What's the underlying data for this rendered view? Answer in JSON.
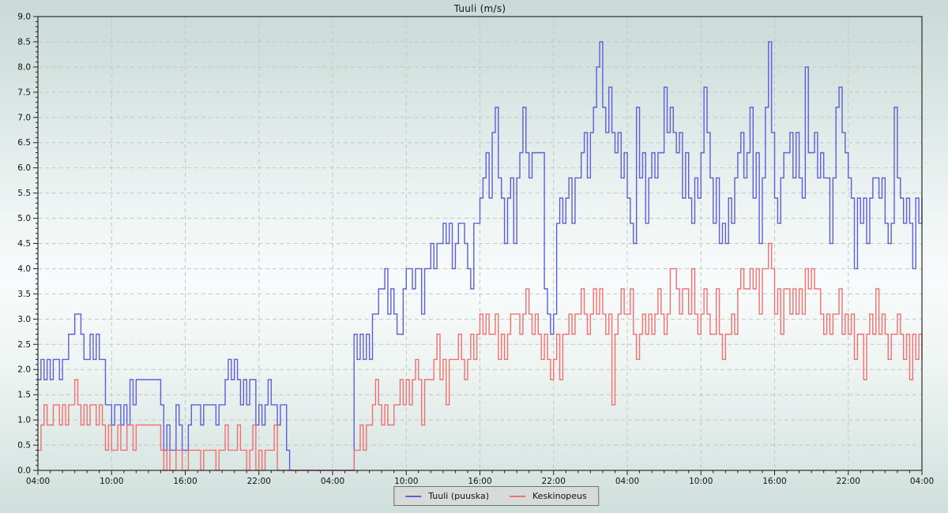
{
  "title": "Tuuli (m/s)",
  "legend": {
    "items": [
      {
        "label": "Tuuli (puuska)",
        "color": "#5e5ed8"
      },
      {
        "label": "Keskinopeus",
        "color": "#f07070"
      }
    ]
  },
  "colors": {
    "gust_line": "#5e5ed8",
    "mean_line": "#f07070",
    "grid": "#c2c7c6",
    "frame": "#2b2b2b",
    "legend_bg": "#d6dbda"
  },
  "chart_data": {
    "type": "line",
    "step": true,
    "title": "Tuuli (m/s)",
    "hours_span": 72,
    "sample_interval_minutes": 15,
    "x_tick_interval_hours": 6,
    "x_tick_labels": [
      "04:00",
      "10:00",
      "16:00",
      "22:00",
      "04:00",
      "10:00",
      "16:00",
      "22:00",
      "04:00",
      "10:00",
      "16:00",
      "22:00",
      "04:00"
    ],
    "y_tick_labels": [
      "0.0",
      "0.5",
      "1.0",
      "1.5",
      "2.0",
      "2.5",
      "3.0",
      "3.5",
      "4.0",
      "4.5",
      "5.0",
      "5.5",
      "6.0",
      "6.5",
      "7.0",
      "7.5",
      "8.0",
      "8.5",
      "9.0"
    ],
    "ylim": [
      0,
      9
    ],
    "y_tick_step": 0.5,
    "grid": true,
    "legend_position": "bottom-center",
    "series": [
      {
        "name": "Tuuli (puuska)",
        "color": "#5e5ed8",
        "values": [
          1.8,
          2.2,
          1.8,
          2.2,
          1.8,
          2.2,
          2.2,
          1.8,
          2.2,
          2.2,
          2.7,
          2.7,
          3.1,
          3.1,
          2.7,
          2.2,
          2.2,
          2.7,
          2.2,
          2.7,
          2.2,
          2.2,
          1.3,
          1.3,
          0.9,
          1.3,
          1.3,
          0.9,
          1.3,
          0.9,
          1.8,
          1.3,
          1.8,
          1.8,
          1.8,
          1.8,
          1.8,
          1.8,
          1.8,
          1.8,
          1.3,
          0.4,
          0.9,
          0.4,
          0.4,
          1.3,
          0.9,
          0.4,
          0.4,
          0.9,
          1.3,
          1.3,
          1.3,
          0.9,
          1.3,
          1.3,
          1.3,
          1.3,
          0.9,
          1.3,
          1.3,
          1.8,
          2.2,
          1.8,
          2.2,
          1.8,
          1.3,
          1.8,
          1.3,
          1.8,
          1.8,
          0.9,
          1.3,
          0.9,
          1.3,
          1.8,
          1.3,
          1.3,
          0.9,
          1.3,
          1.3,
          0.4,
          0,
          0,
          0,
          0,
          0,
          0,
          0,
          0,
          0,
          0,
          0,
          0,
          0,
          0,
          0,
          0,
          0,
          0,
          0,
          0,
          0,
          2.7,
          2.2,
          2.7,
          2.2,
          2.7,
          2.2,
          3.1,
          3.1,
          3.6,
          3.6,
          4.0,
          3.1,
          3.6,
          3.1,
          2.7,
          2.7,
          3.6,
          4.0,
          4.0,
          3.6,
          4.0,
          4.0,
          3.1,
          4.0,
          4.0,
          4.5,
          4.0,
          4.5,
          4.5,
          4.9,
          4.5,
          4.9,
          4.0,
          4.5,
          4.9,
          4.9,
          4.5,
          4.0,
          3.6,
          4.9,
          4.9,
          5.4,
          5.8,
          6.3,
          5.4,
          6.7,
          7.2,
          5.8,
          5.4,
          4.5,
          5.4,
          5.8,
          4.5,
          5.8,
          6.3,
          7.2,
          6.3,
          5.8,
          6.3,
          6.3,
          6.3,
          6.3,
          3.6,
          3.1,
          2.7,
          3.1,
          4.9,
          5.4,
          4.9,
          5.4,
          5.8,
          4.9,
          5.8,
          5.8,
          6.3,
          6.7,
          5.8,
          6.7,
          7.2,
          8.0,
          8.5,
          7.2,
          6.7,
          7.6,
          6.7,
          6.3,
          6.7,
          5.8,
          6.3,
          5.4,
          4.9,
          4.5,
          7.2,
          5.8,
          6.3,
          4.9,
          5.8,
          6.3,
          5.8,
          6.3,
          6.3,
          7.6,
          6.7,
          7.2,
          6.7,
          6.3,
          6.7,
          5.4,
          6.3,
          5.4,
          4.9,
          5.8,
          5.4,
          6.3,
          7.6,
          6.7,
          5.8,
          4.9,
          5.8,
          4.5,
          4.9,
          4.5,
          5.4,
          4.9,
          5.8,
          6.3,
          6.7,
          5.8,
          6.3,
          7.2,
          5.4,
          6.3,
          4.5,
          5.8,
          7.2,
          8.5,
          6.7,
          5.4,
          4.9,
          5.8,
          6.3,
          6.3,
          6.7,
          5.8,
          6.7,
          5.8,
          5.4,
          8.0,
          6.3,
          6.3,
          6.7,
          5.8,
          6.3,
          5.8,
          5.8,
          4.5,
          5.8,
          7.2,
          7.6,
          6.7,
          6.3,
          5.8,
          5.4,
          4.0,
          5.4,
          4.9,
          5.4,
          4.5,
          5.4,
          5.8,
          5.8,
          5.4,
          5.8,
          4.9,
          4.5,
          4.9,
          7.2,
          5.8,
          5.4,
          4.9,
          5.4,
          4.9,
          4.0,
          5.4,
          4.9,
          5.4
        ]
      },
      {
        "name": "Keskinopeus",
        "color": "#f07070",
        "values": [
          0.4,
          0.9,
          1.3,
          0.9,
          0.9,
          1.3,
          1.3,
          0.9,
          1.3,
          0.9,
          1.3,
          1.3,
          1.8,
          1.3,
          0.9,
          1.3,
          0.9,
          1.3,
          1.3,
          0.9,
          1.3,
          0.9,
          0.4,
          0.9,
          0.4,
          0.4,
          0.9,
          0.4,
          0.4,
          0.9,
          0.9,
          0.4,
          0.9,
          0.9,
          0.9,
          0.9,
          0.9,
          0.9,
          0.9,
          0.9,
          0.4,
          0,
          0.4,
          0,
          0,
          0.4,
          0.4,
          0,
          0,
          0.4,
          0.4,
          0.4,
          0.4,
          0,
          0.4,
          0.4,
          0.4,
          0.4,
          0,
          0.4,
          0.4,
          0.9,
          0.4,
          0.4,
          0.4,
          0.9,
          0.4,
          0.4,
          0,
          0.4,
          0.9,
          0,
          0.4,
          0,
          0.4,
          0.4,
          0.4,
          0.9,
          0,
          0,
          0,
          0,
          0,
          0,
          0,
          0,
          0,
          0,
          0,
          0,
          0,
          0,
          0,
          0,
          0,
          0,
          0,
          0,
          0,
          0,
          0,
          0,
          0,
          0.4,
          0.4,
          0.9,
          0.4,
          0.9,
          0.9,
          1.3,
          1.8,
          1.3,
          0.9,
          1.3,
          0.9,
          0.9,
          1.3,
          1.3,
          1.8,
          1.3,
          1.8,
          1.3,
          1.8,
          2.2,
          1.8,
          0.9,
          1.8,
          1.8,
          1.8,
          2.2,
          2.7,
          1.8,
          2.2,
          1.3,
          2.2,
          2.2,
          2.2,
          2.7,
          2.2,
          1.8,
          2.2,
          2.7,
          2.2,
          2.7,
          3.1,
          2.7,
          3.1,
          2.7,
          2.7,
          3.1,
          2.2,
          2.7,
          2.2,
          2.7,
          3.1,
          3.1,
          3.1,
          2.7,
          3.1,
          3.6,
          3.1,
          2.7,
          3.1,
          2.7,
          2.2,
          2.7,
          2.2,
          1.8,
          2.2,
          2.7,
          1.8,
          2.7,
          2.7,
          3.1,
          2.7,
          3.1,
          3.1,
          3.6,
          3.1,
          2.7,
          3.1,
          3.6,
          3.1,
          3.6,
          3.1,
          2.7,
          3.1,
          1.3,
          2.7,
          3.1,
          3.6,
          3.1,
          3.1,
          3.6,
          2.7,
          2.2,
          2.7,
          3.1,
          2.7,
          3.1,
          2.7,
          3.1,
          3.6,
          3.1,
          2.7,
          3.1,
          4.0,
          4.0,
          3.6,
          3.1,
          3.6,
          3.6,
          3.1,
          4.0,
          3.1,
          2.7,
          3.1,
          3.6,
          3.1,
          2.7,
          2.7,
          3.6,
          2.7,
          2.2,
          2.7,
          2.7,
          3.1,
          2.7,
          3.6,
          4.0,
          3.6,
          3.6,
          4.0,
          3.6,
          4.0,
          3.1,
          4.0,
          4.0,
          4.5,
          4.0,
          3.1,
          3.6,
          2.7,
          3.6,
          3.6,
          3.1,
          3.6,
          3.1,
          3.6,
          3.1,
          4.0,
          3.6,
          4.0,
          3.6,
          3.6,
          3.1,
          2.7,
          3.1,
          2.7,
          3.1,
          3.1,
          3.6,
          2.7,
          3.1,
          2.7,
          3.1,
          2.2,
          2.7,
          2.7,
          1.8,
          2.7,
          3.1,
          2.7,
          3.6,
          2.7,
          3.1,
          2.7,
          2.2,
          2.7,
          2.7,
          3.1,
          2.7,
          2.2,
          2.7,
          1.8,
          2.7,
          2.2,
          2.7,
          2.2
        ]
      }
    ]
  }
}
